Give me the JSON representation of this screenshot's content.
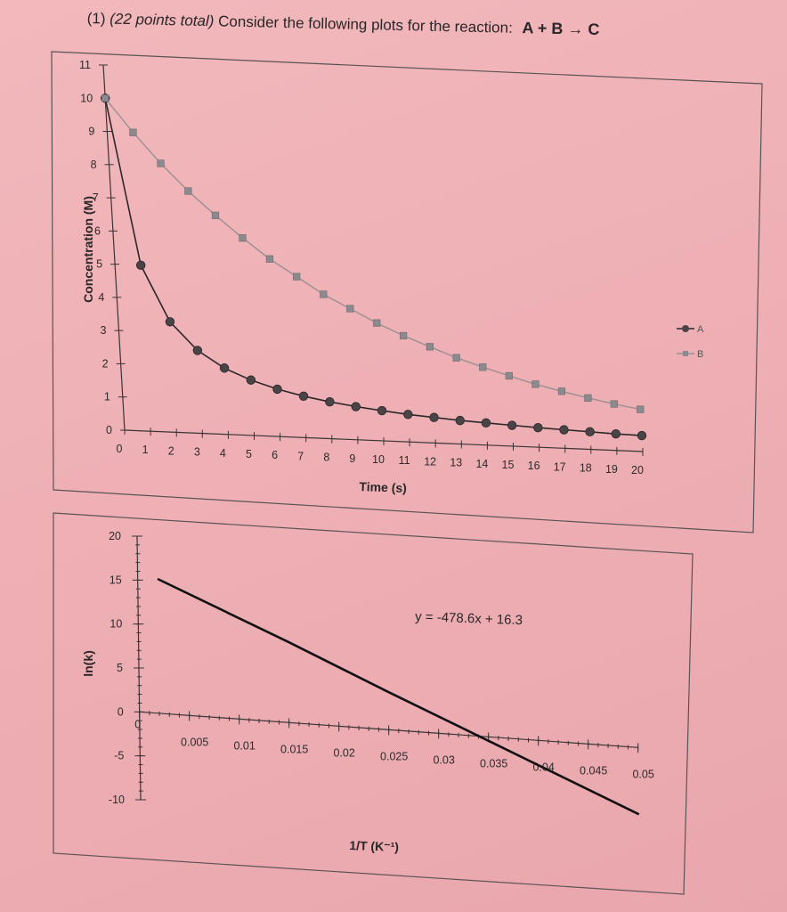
{
  "question": {
    "number": "(1)",
    "points": "(22 points total)",
    "prompt": "Consider the following plots for the reaction:",
    "reaction": "A + B → C"
  },
  "chart_data": [
    {
      "type": "line",
      "title": "",
      "xlabel": "Time (s)",
      "ylabel": "Concentration (M)",
      "xlim": [
        0,
        20
      ],
      "ylim": [
        0,
        11
      ],
      "x_ticks": [
        0,
        1,
        2,
        3,
        4,
        5,
        6,
        7,
        8,
        9,
        10,
        11,
        12,
        13,
        14,
        15,
        16,
        17,
        18,
        19,
        20
      ],
      "y_ticks": [
        0,
        1,
        2,
        3,
        4,
        5,
        6,
        7,
        8,
        9,
        10,
        11
      ],
      "grid": false,
      "legend": "right",
      "x": [
        0,
        1,
        2,
        3,
        4,
        5,
        6,
        7,
        8,
        9,
        10,
        11,
        12,
        13,
        14,
        15,
        16,
        17,
        18,
        19,
        20
      ],
      "series": [
        {
          "name": "A",
          "marker": "circle",
          "color": "#4a4446",
          "values": [
            10.0,
            5.0,
            3.33,
            2.5,
            2.0,
            1.67,
            1.43,
            1.25,
            1.11,
            1.0,
            0.91,
            0.83,
            0.77,
            0.71,
            0.67,
            0.63,
            0.59,
            0.56,
            0.53,
            0.5,
            0.48
          ]
        },
        {
          "name": "B",
          "marker": "square",
          "color": "#8a8a8f",
          "values": [
            10.0,
            9.0,
            8.1,
            7.3,
            6.6,
            5.95,
            5.35,
            4.85,
            4.35,
            3.95,
            3.55,
            3.2,
            2.9,
            2.6,
            2.35,
            2.12,
            1.9,
            1.72,
            1.55,
            1.4,
            1.27
          ]
        }
      ]
    },
    {
      "type": "line",
      "title": "",
      "xlabel": "1/T (K⁻¹)",
      "ylabel": "ln(k)",
      "xlim": [
        0,
        0.05
      ],
      "ylim": [
        -10,
        20
      ],
      "x_ticks": [
        "0",
        "0.005",
        "0.01",
        "0.015",
        "0.02",
        "0.025",
        "0.03",
        "0.035",
        "0.04",
        "0.045",
        "0.05"
      ],
      "y_ticks": [
        "20",
        "15",
        "10",
        "5",
        "0",
        "-5",
        "-10"
      ],
      "grid": false,
      "annotation": "y = -478.6x + 16.3",
      "series": [
        {
          "name": "",
          "color": "#111111",
          "x": [
            0.002,
            0.015,
            0.025,
            0.035,
            0.05
          ],
          "values": [
            15.3,
            9.2,
            4.3,
            -0.45,
            -7.6
          ]
        }
      ]
    }
  ]
}
